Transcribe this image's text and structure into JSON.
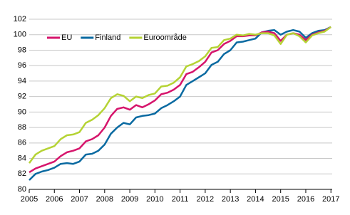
{
  "chart_data": {
    "type": "line",
    "x": [
      2005,
      2005.25,
      2005.5,
      2005.75,
      2006,
      2006.25,
      2006.5,
      2006.75,
      2007,
      2007.25,
      2007.5,
      2007.75,
      2008,
      2008.25,
      2008.5,
      2008.75,
      2009,
      2009.25,
      2009.5,
      2009.75,
      2010,
      2010.25,
      2010.5,
      2010.75,
      2011,
      2011.25,
      2011.5,
      2011.75,
      2012,
      2012.25,
      2012.5,
      2012.75,
      2013,
      2013.25,
      2013.5,
      2013.75,
      2014,
      2014.25,
      2014.5,
      2014.75,
      2015,
      2015.25,
      2015.5,
      2015.75,
      2016,
      2016.25,
      2016.5,
      2016.75,
      2017
    ],
    "series": [
      {
        "name": "EU",
        "color": "#d6156c",
        "values": [
          82.2,
          82.7,
          83.0,
          83.3,
          83.6,
          84.3,
          84.8,
          85.0,
          85.3,
          86.2,
          86.5,
          87.0,
          88.0,
          89.5,
          90.4,
          90.6,
          90.3,
          90.9,
          90.6,
          91.0,
          91.5,
          92.3,
          92.5,
          92.9,
          93.5,
          94.9,
          95.2,
          95.8,
          96.5,
          97.7,
          98.0,
          98.8,
          99.2,
          99.8,
          99.8,
          99.9,
          99.9,
          100.3,
          100.4,
          100.2,
          99.2,
          100.0,
          100.2,
          100.0,
          99.3,
          100.0,
          100.3,
          100.5,
          101.0
        ]
      },
      {
        "name": "Finland",
        "color": "#0a6aa1",
        "values": [
          81.2,
          82.0,
          82.3,
          82.5,
          82.8,
          83.3,
          83.4,
          83.3,
          83.6,
          84.5,
          84.6,
          85.0,
          85.8,
          87.2,
          88.0,
          88.6,
          88.4,
          89.3,
          89.5,
          89.6,
          89.8,
          90.5,
          90.9,
          91.4,
          92.0,
          93.5,
          94.0,
          94.5,
          95.0,
          96.1,
          96.5,
          97.5,
          98.0,
          99.0,
          99.1,
          99.3,
          99.5,
          100.3,
          100.5,
          100.6,
          100.0,
          100.4,
          100.6,
          100.4,
          99.6,
          100.2,
          100.5,
          100.6,
          101.0
        ]
      },
      {
        "name": "Euroområde",
        "color": "#b5d334",
        "values": [
          83.4,
          84.5,
          85.0,
          85.3,
          85.6,
          86.5,
          87.0,
          87.1,
          87.4,
          88.6,
          89.0,
          89.6,
          90.5,
          91.8,
          92.3,
          92.1,
          91.4,
          92.0,
          91.8,
          92.2,
          92.4,
          93.3,
          93.4,
          93.8,
          94.5,
          95.9,
          96.2,
          96.6,
          97.2,
          98.3,
          98.4,
          99.3,
          99.5,
          100.0,
          99.9,
          100.1,
          100.0,
          100.2,
          100.2,
          99.9,
          98.8,
          100.0,
          100.2,
          99.8,
          99.0,
          99.9,
          100.2,
          100.4,
          101.0
        ]
      }
    ],
    "xlim": [
      2005,
      2017.05
    ],
    "xticks": [
      2005,
      2006,
      2007,
      2008,
      2009,
      2010,
      2011,
      2012,
      2013,
      2014,
      2015,
      2016,
      2017
    ],
    "ylim": [
      80,
      102
    ],
    "yticks": [
      80,
      82,
      84,
      86,
      88,
      90,
      92,
      94,
      96,
      98,
      100,
      102
    ],
    "grid": true
  }
}
